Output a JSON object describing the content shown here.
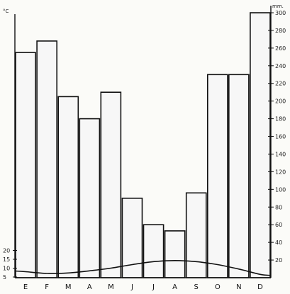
{
  "chart_data": {
    "type": "bar",
    "categories": [
      "E",
      "F",
      "M",
      "A",
      "M",
      "J",
      "J",
      "A",
      "S",
      "O",
      "N",
      "D"
    ],
    "series": [
      {
        "type": "bar",
        "axis": "right",
        "values": [
          255,
          268,
          205,
          180,
          210,
          90,
          60,
          53,
          96,
          230,
          230,
          300
        ]
      },
      {
        "type": "line",
        "axis": "left",
        "values": [
          8,
          7,
          7.3,
          8.5,
          10,
          12,
          13.7,
          14.3,
          13.7,
          12,
          9.5,
          6.5
        ]
      }
    ],
    "left_axis": {
      "unit": "°C",
      "ticks": [
        "5",
        "10",
        "15",
        "20"
      ],
      "range": [
        5,
        20
      ]
    },
    "right_axis": {
      "unit": "mm.",
      "ticks": [
        "20",
        "40",
        "60",
        "80",
        "100",
        "120",
        "140",
        "160",
        "180",
        "200",
        "220",
        "240",
        "260",
        "280",
        "300"
      ],
      "range": [
        0,
        300
      ]
    },
    "grid": false
  }
}
